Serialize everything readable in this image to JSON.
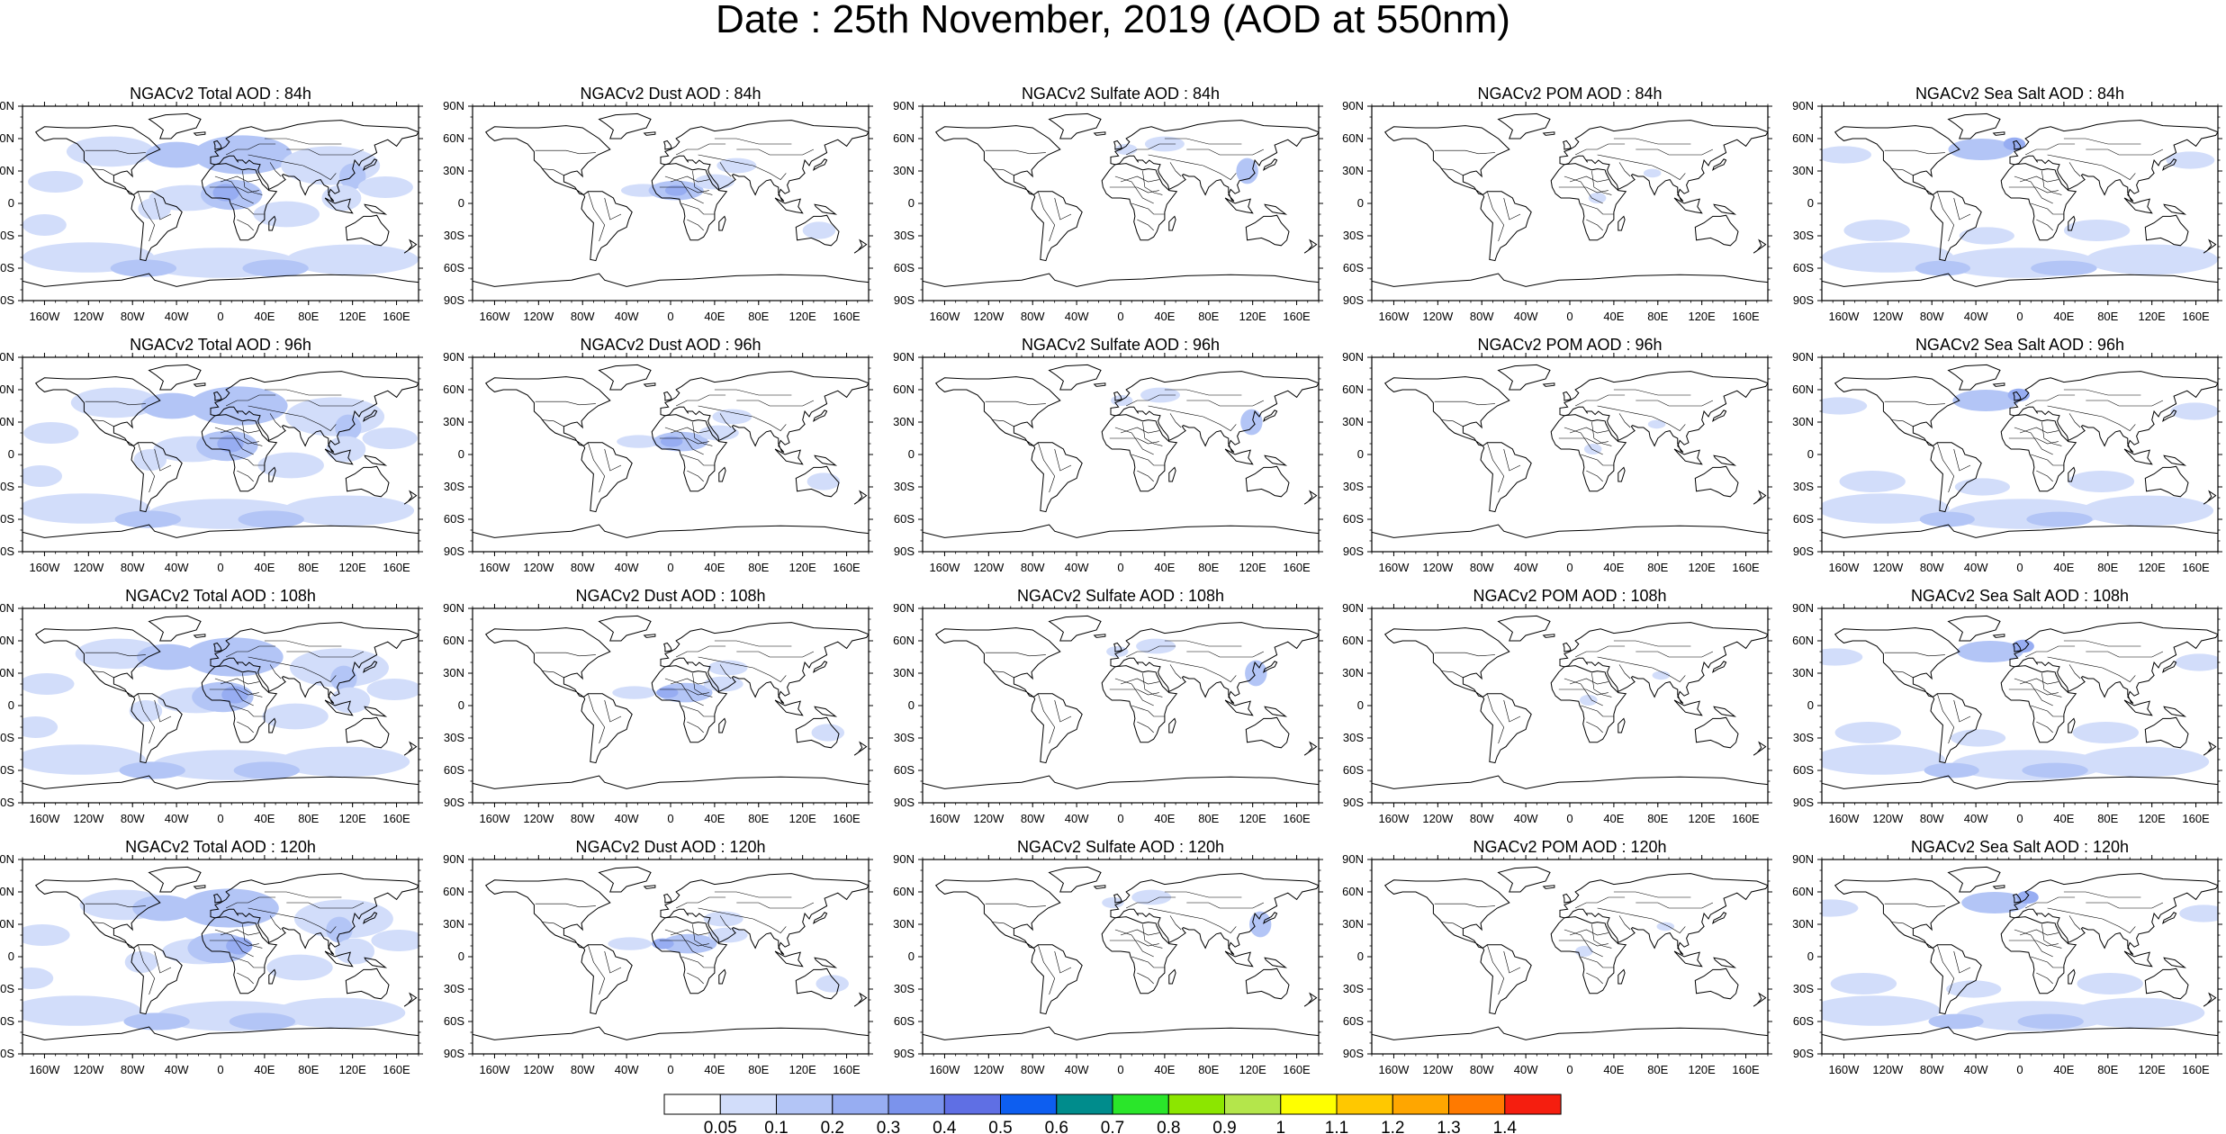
{
  "title": "Date : 25th November, 2019 (AOD at 550nm)",
  "lat_labels": [
    "90N",
    "60N",
    "30N",
    "0",
    "30S",
    "60S",
    "90S"
  ],
  "lon_labels": [
    "160W",
    "120W",
    "80W",
    "40W",
    "0",
    "40E",
    "80E",
    "120E",
    "160E"
  ],
  "panels": [
    {
      "title": "NGACv2 Total AOD : 84h",
      "species": "total",
      "hour": 84
    },
    {
      "title": "NGACv2 Dust AOD : 84h",
      "species": "dust",
      "hour": 84
    },
    {
      "title": "NGACv2 Sulfate AOD : 84h",
      "species": "sulfate",
      "hour": 84
    },
    {
      "title": "NGACv2 POM AOD : 84h",
      "species": "pom",
      "hour": 84
    },
    {
      "title": "NGACv2 Sea Salt AOD : 84h",
      "species": "seasalt",
      "hour": 84
    },
    {
      "title": "NGACv2 Total AOD : 96h",
      "species": "total",
      "hour": 96
    },
    {
      "title": "NGACv2 Dust AOD : 96h",
      "species": "dust",
      "hour": 96
    },
    {
      "title": "NGACv2 Sulfate AOD : 96h",
      "species": "sulfate",
      "hour": 96
    },
    {
      "title": "NGACv2 POM AOD : 96h",
      "species": "pom",
      "hour": 96
    },
    {
      "title": "NGACv2 Sea Salt AOD : 96h",
      "species": "seasalt",
      "hour": 96
    },
    {
      "title": "NGACv2 Total AOD : 108h",
      "species": "total",
      "hour": 108
    },
    {
      "title": "NGACv2 Dust AOD : 108h",
      "species": "dust",
      "hour": 108
    },
    {
      "title": "NGACv2 Sulfate AOD : 108h",
      "species": "sulfate",
      "hour": 108
    },
    {
      "title": "NGACv2 POM AOD : 108h",
      "species": "pom",
      "hour": 108
    },
    {
      "title": "NGACv2 Sea Salt AOD : 108h",
      "species": "seasalt",
      "hour": 108
    },
    {
      "title": "NGACv2 Total AOD : 120h",
      "species": "total",
      "hour": 120
    },
    {
      "title": "NGACv2 Dust AOD : 120h",
      "species": "dust",
      "hour": 120
    },
    {
      "title": "NGACv2 Sulfate AOD : 120h",
      "species": "sulfate",
      "hour": 120
    },
    {
      "title": "NGACv2 POM AOD : 120h",
      "species": "pom",
      "hour": 120
    },
    {
      "title": "NGACv2 Sea Salt  AOD : 120h",
      "species": "seasalt",
      "hour": 120
    }
  ],
  "colorbar": {
    "labels": [
      "0.05",
      "0.1",
      "0.2",
      "0.3",
      "0.4",
      "0.5",
      "0.6",
      "0.7",
      "0.8",
      "0.9",
      "1",
      "1.1",
      "1.2",
      "1.3",
      "1.4"
    ],
    "colors": [
      "#ffffff",
      "#d2ddfa",
      "#b3c5f6",
      "#97adf2",
      "#7b93ec",
      "#5f6fe4",
      "#0d5ef0",
      "#008c8c",
      "#2ae62a",
      "#8ce600",
      "#b4e64b",
      "#ffff00",
      "#ffc800",
      "#ffa600",
      "#ff7a00",
      "#f51e0f"
    ]
  },
  "fill_colors": {
    "light": "#d2ddfa",
    "medium": "#b3c5f6",
    "strong": "#97adf2",
    "heavy": "#7b93ec",
    "peak": "#5f6fe4",
    "hotspot": "#008c8c"
  }
}
